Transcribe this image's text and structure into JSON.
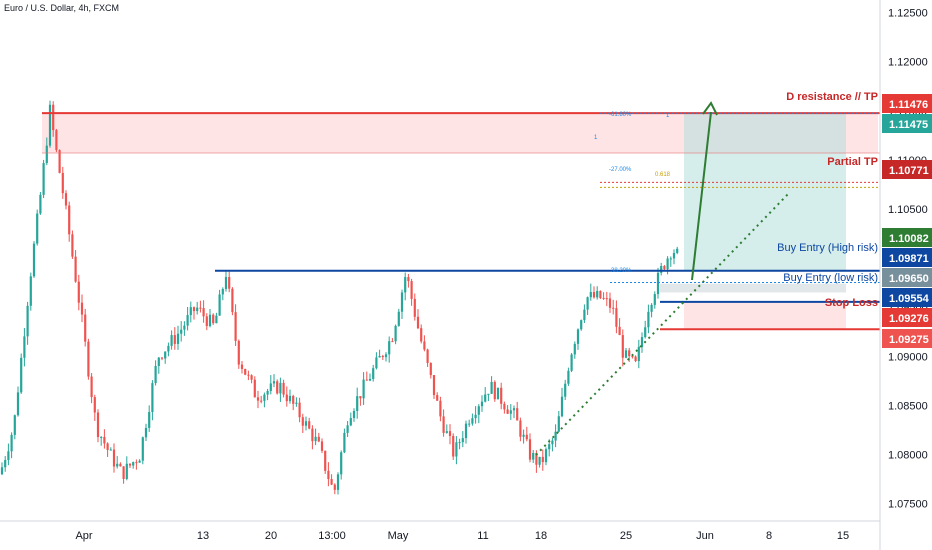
{
  "window": {
    "title": "Euro / U.S. Dollar, 4h, FXCM"
  },
  "colors": {
    "bull": "#26a69a",
    "bear": "#ef5350",
    "resistance": "#e53935",
    "entry_line": "#0d47a1",
    "stop_line": "#e53935",
    "tp_zone": "#b2dfdb",
    "sl_zone": "#ffcdd2",
    "res_zone": "#ffcdd2",
    "arrow": "#2e7d32",
    "trend": "#2e7d32",
    "fib": "#1e88e5",
    "fib_gold": "#c8a000",
    "axis_text": "#131722"
  },
  "chart_data": {
    "type": "candlestick",
    "title": "Euro / U.S. Dollar, 4h, FXCM",
    "ylim": [
      1.0715,
      1.1275
    ],
    "y_ticks": [
      "1.07500",
      "1.08000",
      "1.08500",
      "1.09000",
      "1.09500",
      "1.10000",
      "1.10500",
      "1.11000",
      "1.11500",
      "1.12000",
      "1.12500"
    ],
    "x_ticks": [
      "Apr",
      "13",
      "20",
      "13:00",
      "May",
      "11",
      "18",
      "25",
      "Jun",
      "8",
      "15"
    ],
    "grid": false,
    "levels": [
      {
        "name": "D resistance // TP",
        "price": 1.11476,
        "badge": "1.11476",
        "color": "#e53935"
      },
      {
        "name": "",
        "price": 1.11475,
        "badge": "1.11475",
        "color": "#26a69a"
      },
      {
        "name": "Partial TP",
        "price": 1.10771,
        "badge": "1.10771",
        "color": "#c62828"
      },
      {
        "name": "",
        "price": 1.10082,
        "badge": "1.10082",
        "color": "#2e7d32"
      },
      {
        "name": "Buy Entry (High risk)",
        "price": 1.09871,
        "badge": "1.09871",
        "color": "#0d47a1"
      },
      {
        "name": "Buy Entry (low risk)",
        "price": 1.0965,
        "badge": "1.09650",
        "color": "#78909c"
      },
      {
        "name": "",
        "price": 1.09554,
        "badge": "1.09554",
        "color": "#0d47a1"
      },
      {
        "name": "Stop Loss",
        "price": 1.09276,
        "badge": "1.09276",
        "color": "#e53935"
      },
      {
        "name": "",
        "price": 1.09275,
        "badge": "1.09275",
        "color": "#ef5350"
      }
    ],
    "fib_labels": [
      "-61.80%",
      "-27.00%",
      "38.20%",
      "0.618",
      "1",
      "1"
    ]
  }
}
